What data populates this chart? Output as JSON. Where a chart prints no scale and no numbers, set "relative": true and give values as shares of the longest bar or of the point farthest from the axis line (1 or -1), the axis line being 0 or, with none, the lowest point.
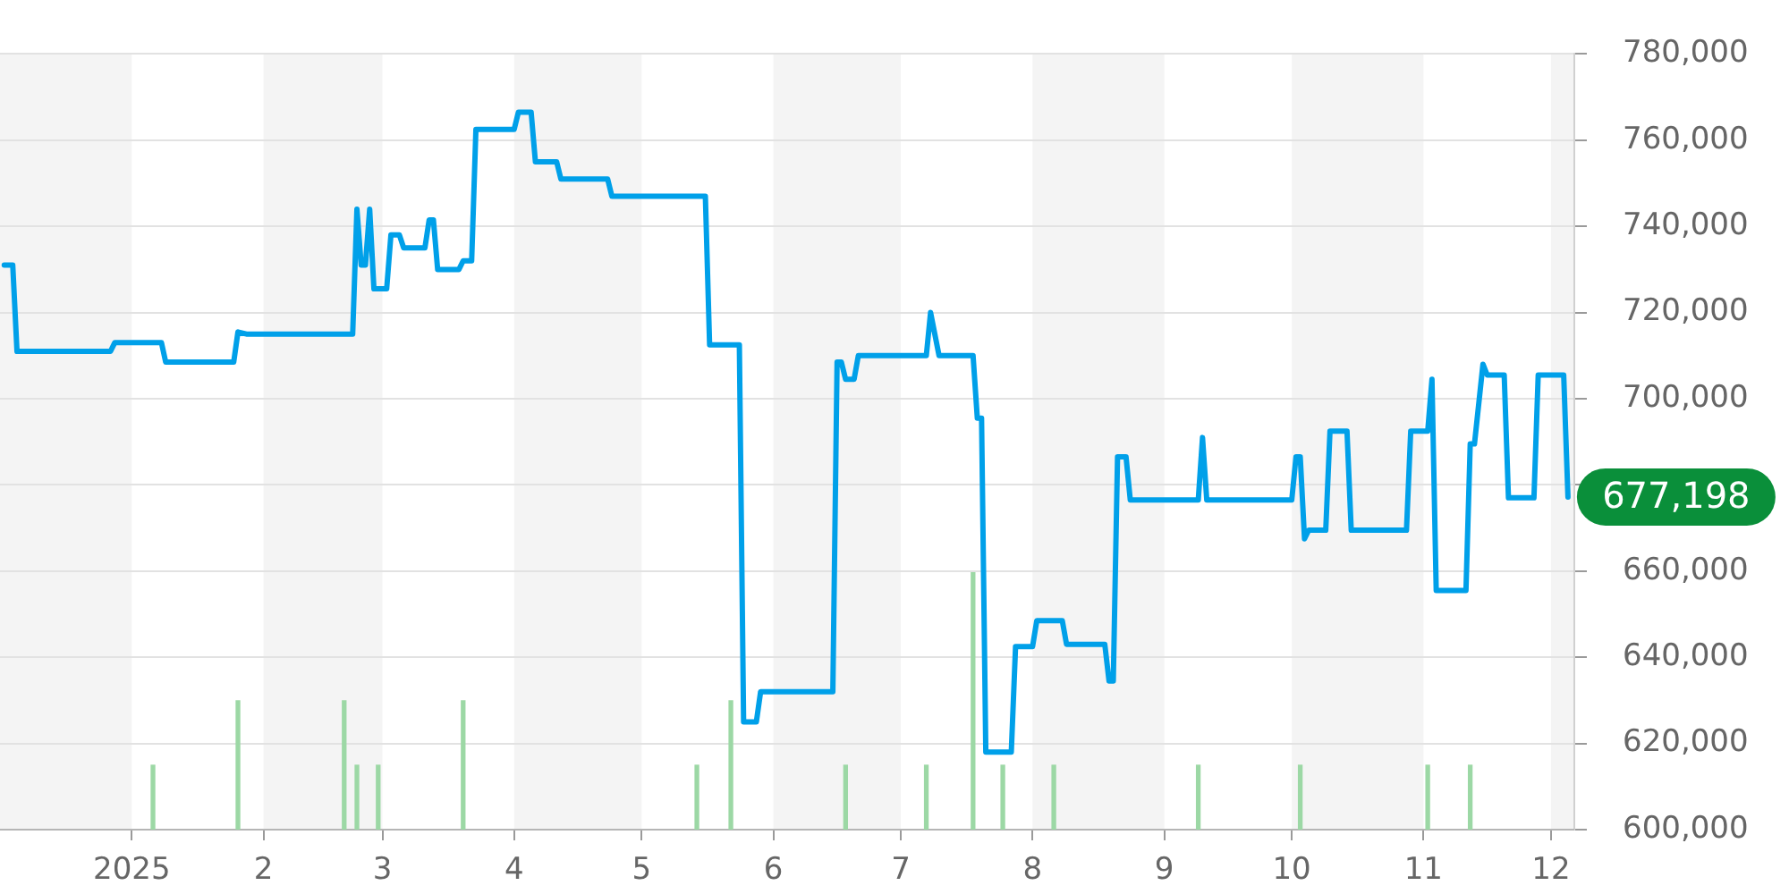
{
  "chart_data": [
    {
      "type": "line",
      "color": "#00a0e9",
      "xlim": [
        "2024-12-01",
        "2025-12-06T12:00"
      ],
      "xticks": [
        {
          "value": "2025-01-01",
          "label": "2025"
        },
        {
          "value": "2025-02-01",
          "label": "2"
        },
        {
          "value": "2025-03-01",
          "label": "3"
        },
        {
          "value": "2025-04-01",
          "label": "4"
        },
        {
          "value": "2025-05-01",
          "label": "5"
        },
        {
          "value": "2025-06-01",
          "label": "6"
        },
        {
          "value": "2025-07-01",
          "label": "7"
        },
        {
          "value": "2025-08-01",
          "label": "8"
        },
        {
          "value": "2025-09-01",
          "label": "9"
        },
        {
          "value": "2025-10-01",
          "label": "10"
        },
        {
          "value": "2025-11-01",
          "label": "11"
        },
        {
          "value": "2025-12-01",
          "label": "12"
        }
      ],
      "ylim": [
        600000,
        780000
      ],
      "yticks": [
        {
          "value": 600000,
          "label": "600,000"
        },
        {
          "value": 620000,
          "label": "620,000"
        },
        {
          "value": 640000,
          "label": "640,000"
        },
        {
          "value": 660000,
          "label": "660,000"
        },
        {
          "value": 680000,
          "label": null
        },
        {
          "value": 700000,
          "label": "700,000"
        },
        {
          "value": 720000,
          "label": "720,000"
        },
        {
          "value": 740000,
          "label": "740,000"
        },
        {
          "value": 760000,
          "label": "760,000"
        },
        {
          "value": 780000,
          "label": "780,000"
        }
      ],
      "grid": "y",
      "bands": [
        {
          "axis": "x",
          "from": "2024-12-01",
          "to": "2025-01-01",
          "color": "#f4f4f4"
        },
        {
          "axis": "x",
          "from": "2025-02-01",
          "to": "2025-03-01",
          "color": "#f4f4f4"
        },
        {
          "axis": "x",
          "from": "2025-04-01",
          "to": "2025-05-01",
          "color": "#f4f4f4"
        },
        {
          "axis": "x",
          "from": "2025-06-01",
          "to": "2025-07-01",
          "color": "#f4f4f4"
        },
        {
          "axis": "x",
          "from": "2025-08-01",
          "to": "2025-09-01",
          "color": "#f4f4f4"
        },
        {
          "axis": "x",
          "from": "2025-10-01",
          "to": "2025-11-01",
          "color": "#f4f4f4"
        },
        {
          "axis": "x",
          "from": "2025-12-01",
          "to": "2025-12-06T12:00",
          "color": "#f4f4f4"
        }
      ],
      "annotations": [
        {
          "text": "677,198",
          "x": "2025-12-05",
          "y": 677198
        }
      ],
      "x": [
        "2024-12-02",
        "2024-12-04",
        "2024-12-05",
        "2024-12-27",
        "2024-12-28",
        "2025-01-08",
        "2025-01-09",
        "2025-01-25",
        "2025-01-26",
        "2025-01-28",
        "2025-02-22",
        "2025-02-23",
        "2025-02-24",
        "2025-02-25",
        "2025-02-26",
        "2025-02-27",
        "2025-03-02",
        "2025-03-03",
        "2025-03-05",
        "2025-03-06",
        "2025-03-11",
        "2025-03-12",
        "2025-03-13",
        "2025-03-14",
        "2025-03-19",
        "2025-03-20",
        "2025-03-22",
        "2025-03-23",
        "2025-04-01",
        "2025-04-02",
        "2025-04-05",
        "2025-04-06",
        "2025-04-11",
        "2025-04-12",
        "2025-04-23",
        "2025-04-24",
        "2025-05-16",
        "2025-05-17",
        "2025-05-24",
        "2025-05-25",
        "2025-05-28",
        "2025-05-29",
        "2025-06-15",
        "2025-06-16",
        "2025-06-17",
        "2025-06-18",
        "2025-06-20",
        "2025-06-21",
        "2025-07-07",
        "2025-07-08",
        "2025-07-10",
        "2025-07-18",
        "2025-07-19",
        "2025-07-20",
        "2025-07-21",
        "2025-07-27",
        "2025-07-28",
        "2025-08-01",
        "2025-08-02",
        "2025-08-08",
        "2025-08-09",
        "2025-08-18",
        "2025-08-19",
        "2025-08-20",
        "2025-08-21",
        "2025-08-23",
        "2025-08-24",
        "2025-09-09",
        "2025-09-10",
        "2025-09-11",
        "2025-10-01",
        "2025-10-02",
        "2025-10-03",
        "2025-10-04",
        "2025-10-05",
        "2025-10-09",
        "2025-10-10",
        "2025-10-14",
        "2025-10-15",
        "2025-10-28",
        "2025-10-29",
        "2025-11-02",
        "2025-11-03",
        "2025-11-04",
        "2025-11-11",
        "2025-11-12",
        "2025-11-13",
        "2025-11-15",
        "2025-11-16",
        "2025-11-20",
        "2025-11-21",
        "2025-11-27",
        "2025-11-28",
        "2025-12-04",
        "2025-12-05"
      ],
      "values": [
        731000,
        731000,
        711000,
        711000,
        713000,
        713000,
        708500,
        708500,
        715500,
        715000,
        715000,
        744000,
        731000,
        731000,
        744000,
        725500,
        725500,
        738000,
        738000,
        735000,
        735000,
        741500,
        741500,
        730000,
        730000,
        732000,
        732000,
        762500,
        762500,
        766500,
        766500,
        755000,
        755000,
        751000,
        751000,
        747000,
        747000,
        712500,
        712500,
        625000,
        625000,
        632000,
        632000,
        708500,
        708500,
        704500,
        704500,
        710000,
        710000,
        720000,
        710000,
        710000,
        695500,
        695500,
        618000,
        618000,
        642500,
        642500,
        648500,
        648500,
        643000,
        643000,
        634500,
        634500,
        686500,
        686500,
        676500,
        676500,
        691000,
        676500,
        676500,
        686500,
        686500,
        667500,
        669500,
        669500,
        692500,
        692500,
        669500,
        669500,
        692500,
        692500,
        704500,
        655500,
        655500,
        689500,
        689500,
        708000,
        705500,
        705500,
        677000,
        677000,
        705500,
        705500,
        677198
      ]
    },
    {
      "type": "bar",
      "relative": true,
      "tick_labels": false,
      "color": "#9cd8a5",
      "xlim": [
        "2024-12-01",
        "2025-12-06T12:00"
      ],
      "x": [
        "2025-01-06",
        "2025-01-26",
        "2025-02-20",
        "2025-02-23",
        "2025-02-28",
        "2025-03-20",
        "2025-05-14",
        "2025-05-22",
        "2025-06-18",
        "2025-07-07",
        "2025-07-18",
        "2025-07-25",
        "2025-08-06",
        "2025-09-09",
        "2025-10-03",
        "2025-11-02",
        "2025-11-12"
      ],
      "values": [
        0.25,
        0.5,
        0.5,
        0.25,
        0.25,
        0.5,
        0.25,
        0.5,
        0.25,
        0.25,
        1,
        0.25,
        0.25,
        0.25,
        0.25,
        0.25,
        0.25
      ]
    }
  ]
}
